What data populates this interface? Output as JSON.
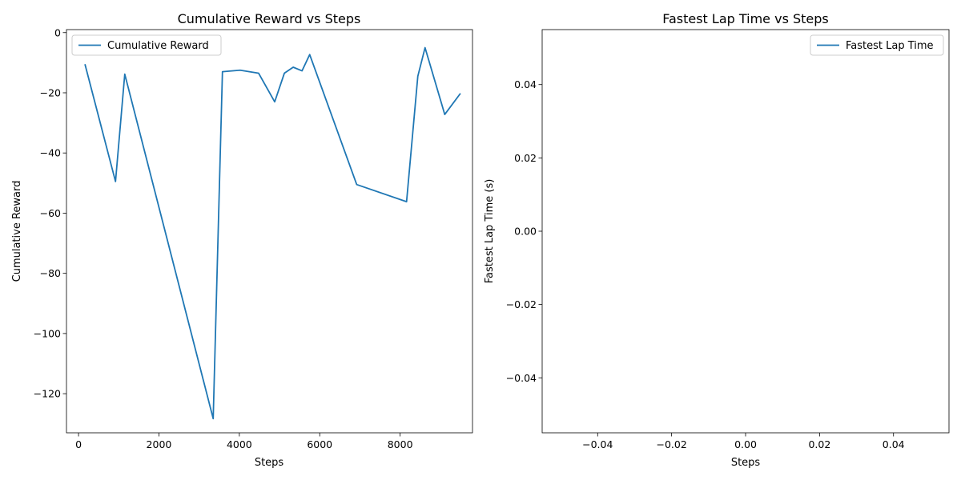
{
  "chart_data": [
    {
      "type": "line",
      "title": "Cumulative Reward vs Steps",
      "xlabel": "Steps",
      "ylabel": "Cumulative Reward",
      "xlim": [
        -300,
        9800
      ],
      "ylim": [
        -133,
        1
      ],
      "xticks": [
        0,
        2000,
        4000,
        6000,
        8000
      ],
      "yticks": [
        0,
        -20,
        -40,
        -60,
        -80,
        -100,
        -120
      ],
      "xtick_labels": [
        "0",
        "2000",
        "4000",
        "6000",
        "8000"
      ],
      "ytick_labels": [
        "0",
        "−20",
        "−40",
        "−60",
        "−80",
        "−100",
        "−120"
      ],
      "legend_position": "top-left",
      "color": "#1f77b4",
      "series": [
        {
          "name": "Cumulative Reward",
          "x": [
            160,
            920,
            1150,
            3350,
            3580,
            4020,
            4480,
            4880,
            5120,
            5340,
            5560,
            5750,
            6920,
            8160,
            8440,
            8620,
            9110,
            9500
          ],
          "y": [
            -10.5,
            -49.5,
            -13.8,
            -128.3,
            -13.0,
            -12.5,
            -13.5,
            -23.0,
            -13.5,
            -11.5,
            -12.7,
            -7.3,
            -50.5,
            -56.2,
            -14.5,
            -5.0,
            -27.2,
            -20.2
          ]
        }
      ]
    },
    {
      "type": "line",
      "title": "Fastest Lap Time vs Steps",
      "xlabel": "Steps",
      "ylabel": "Fastest Lap Time (s)",
      "xlim": [
        -0.055,
        0.055
      ],
      "ylim": [
        -0.055,
        0.055
      ],
      "xticks": [
        -0.04,
        -0.02,
        0.0,
        0.02,
        0.04
      ],
      "yticks": [
        0.04,
        0.02,
        0.0,
        -0.02,
        -0.04
      ],
      "xtick_labels": [
        "−0.04",
        "−0.02",
        "0.00",
        "0.02",
        "0.04"
      ],
      "ytick_labels": [
        "0.04",
        "0.02",
        "0.00",
        "−0.02",
        "−0.04"
      ],
      "legend_position": "top-right",
      "color": "#1f77b4",
      "series": [
        {
          "name": "Fastest Lap Time",
          "x": [],
          "y": []
        }
      ]
    }
  ]
}
